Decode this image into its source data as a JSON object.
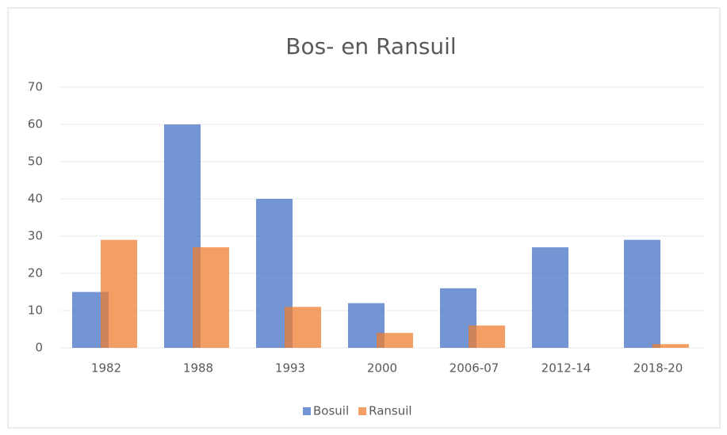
{
  "chart_data": {
    "type": "bar",
    "title": "Bos- en Ransuil",
    "categories": [
      "1982",
      "1988",
      "1993",
      "2000",
      "2006-07",
      "2012-14",
      "2018-20"
    ],
    "series": [
      {
        "name": "Bosuil",
        "color": "#4472c4",
        "values": [
          15,
          60,
          40,
          12,
          16,
          27,
          29
        ]
      },
      {
        "name": "Ransuil",
        "color": "#ed7d31",
        "values": [
          29,
          27,
          11,
          4,
          6,
          0,
          1
        ]
      }
    ],
    "ylim": [
      0,
      70
    ],
    "yticks": [
      0,
      10,
      20,
      30,
      40,
      50,
      60,
      70
    ],
    "grid": true,
    "legend": "bottom"
  }
}
